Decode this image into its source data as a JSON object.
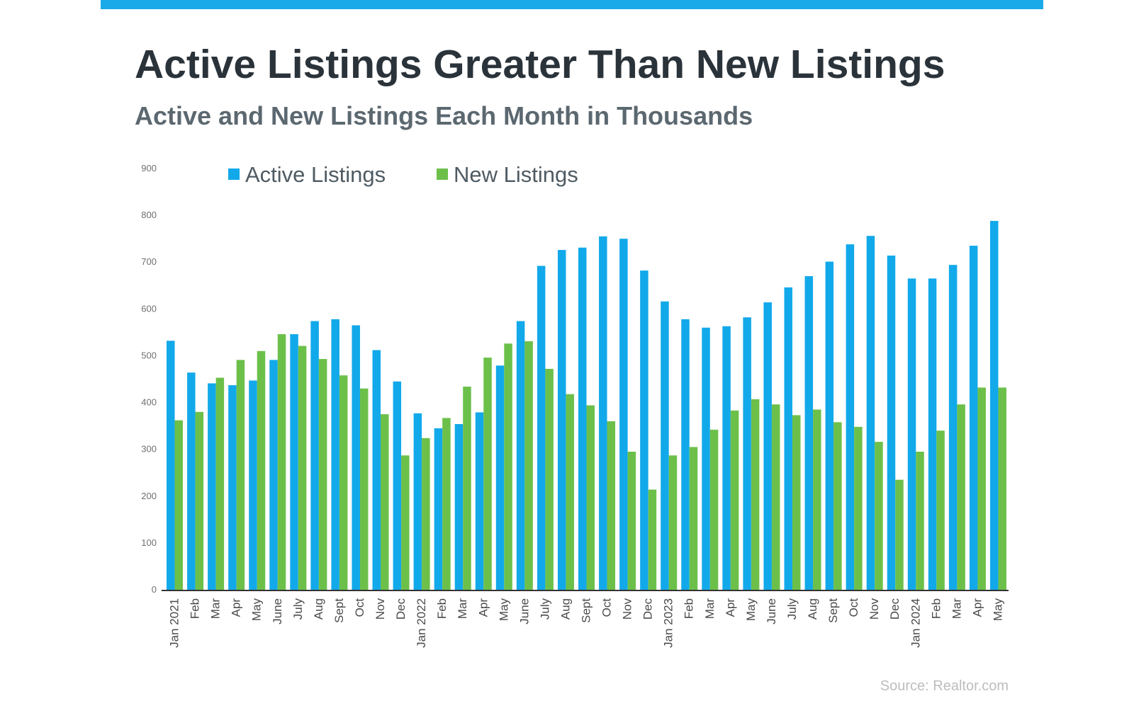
{
  "header": {
    "title": "Active Listings Greater Than New Listings",
    "subtitle": "Active and New Listings Each Month in Thousands"
  },
  "footer": {
    "source": "Source: Realtor.com"
  },
  "colors": {
    "accent_bar": "#1aaaea",
    "active": "#12a9ea",
    "new": "#6cc04a",
    "axis": "#333333"
  },
  "chart_data": {
    "type": "bar",
    "title": "Active Listings Greater Than New Listings",
    "subtitle": "Active and New Listings Each Month in Thousands",
    "xlabel": "",
    "ylabel": "",
    "ylim": [
      0,
      900
    ],
    "yticks": [
      0,
      100,
      200,
      300,
      400,
      500,
      600,
      700,
      800,
      900
    ],
    "grid": false,
    "legend_position": "top-left",
    "categories": [
      "Jan 2021",
      "Feb",
      "Mar",
      "Apr",
      "May",
      "June",
      "July",
      "Aug",
      "Sept",
      "Oct",
      "Nov",
      "Dec",
      "Jan 2022",
      "Feb",
      "Mar",
      "Apr",
      "May",
      "June",
      "July",
      "Aug",
      "Sept",
      "Oct",
      "Nov",
      "Dec",
      "Jan 2023",
      "Feb",
      "Mar",
      "Apr",
      "May",
      "June",
      "July",
      "Aug",
      "Sept",
      "Oct",
      "Nov",
      "Dec",
      "Jan 2024",
      "Feb",
      "Mar",
      "Apr",
      "May"
    ],
    "series": [
      {
        "name": "Active Listings",
        "color": "#12a9ea",
        "values": [
          532,
          464,
          441,
          437,
          447,
          491,
          546,
          574,
          578,
          565,
          512,
          445,
          377,
          345,
          354,
          379,
          479,
          574,
          692,
          726,
          731,
          755,
          750,
          682,
          616,
          578,
          560,
          563,
          582,
          614,
          646,
          670,
          701,
          738,
          756,
          714,
          665,
          665,
          694,
          735,
          788
        ]
      },
      {
        "name": "New Listings",
        "color": "#6cc04a",
        "values": [
          362,
          380,
          453,
          491,
          510,
          546,
          521,
          493,
          458,
          430,
          375,
          287,
          324,
          367,
          434,
          496,
          526,
          531,
          472,
          418,
          394,
          360,
          295,
          214,
          287,
          305,
          342,
          383,
          407,
          396,
          373,
          385,
          358,
          348,
          316,
          235,
          295,
          340,
          396,
          432,
          432
        ]
      }
    ]
  }
}
